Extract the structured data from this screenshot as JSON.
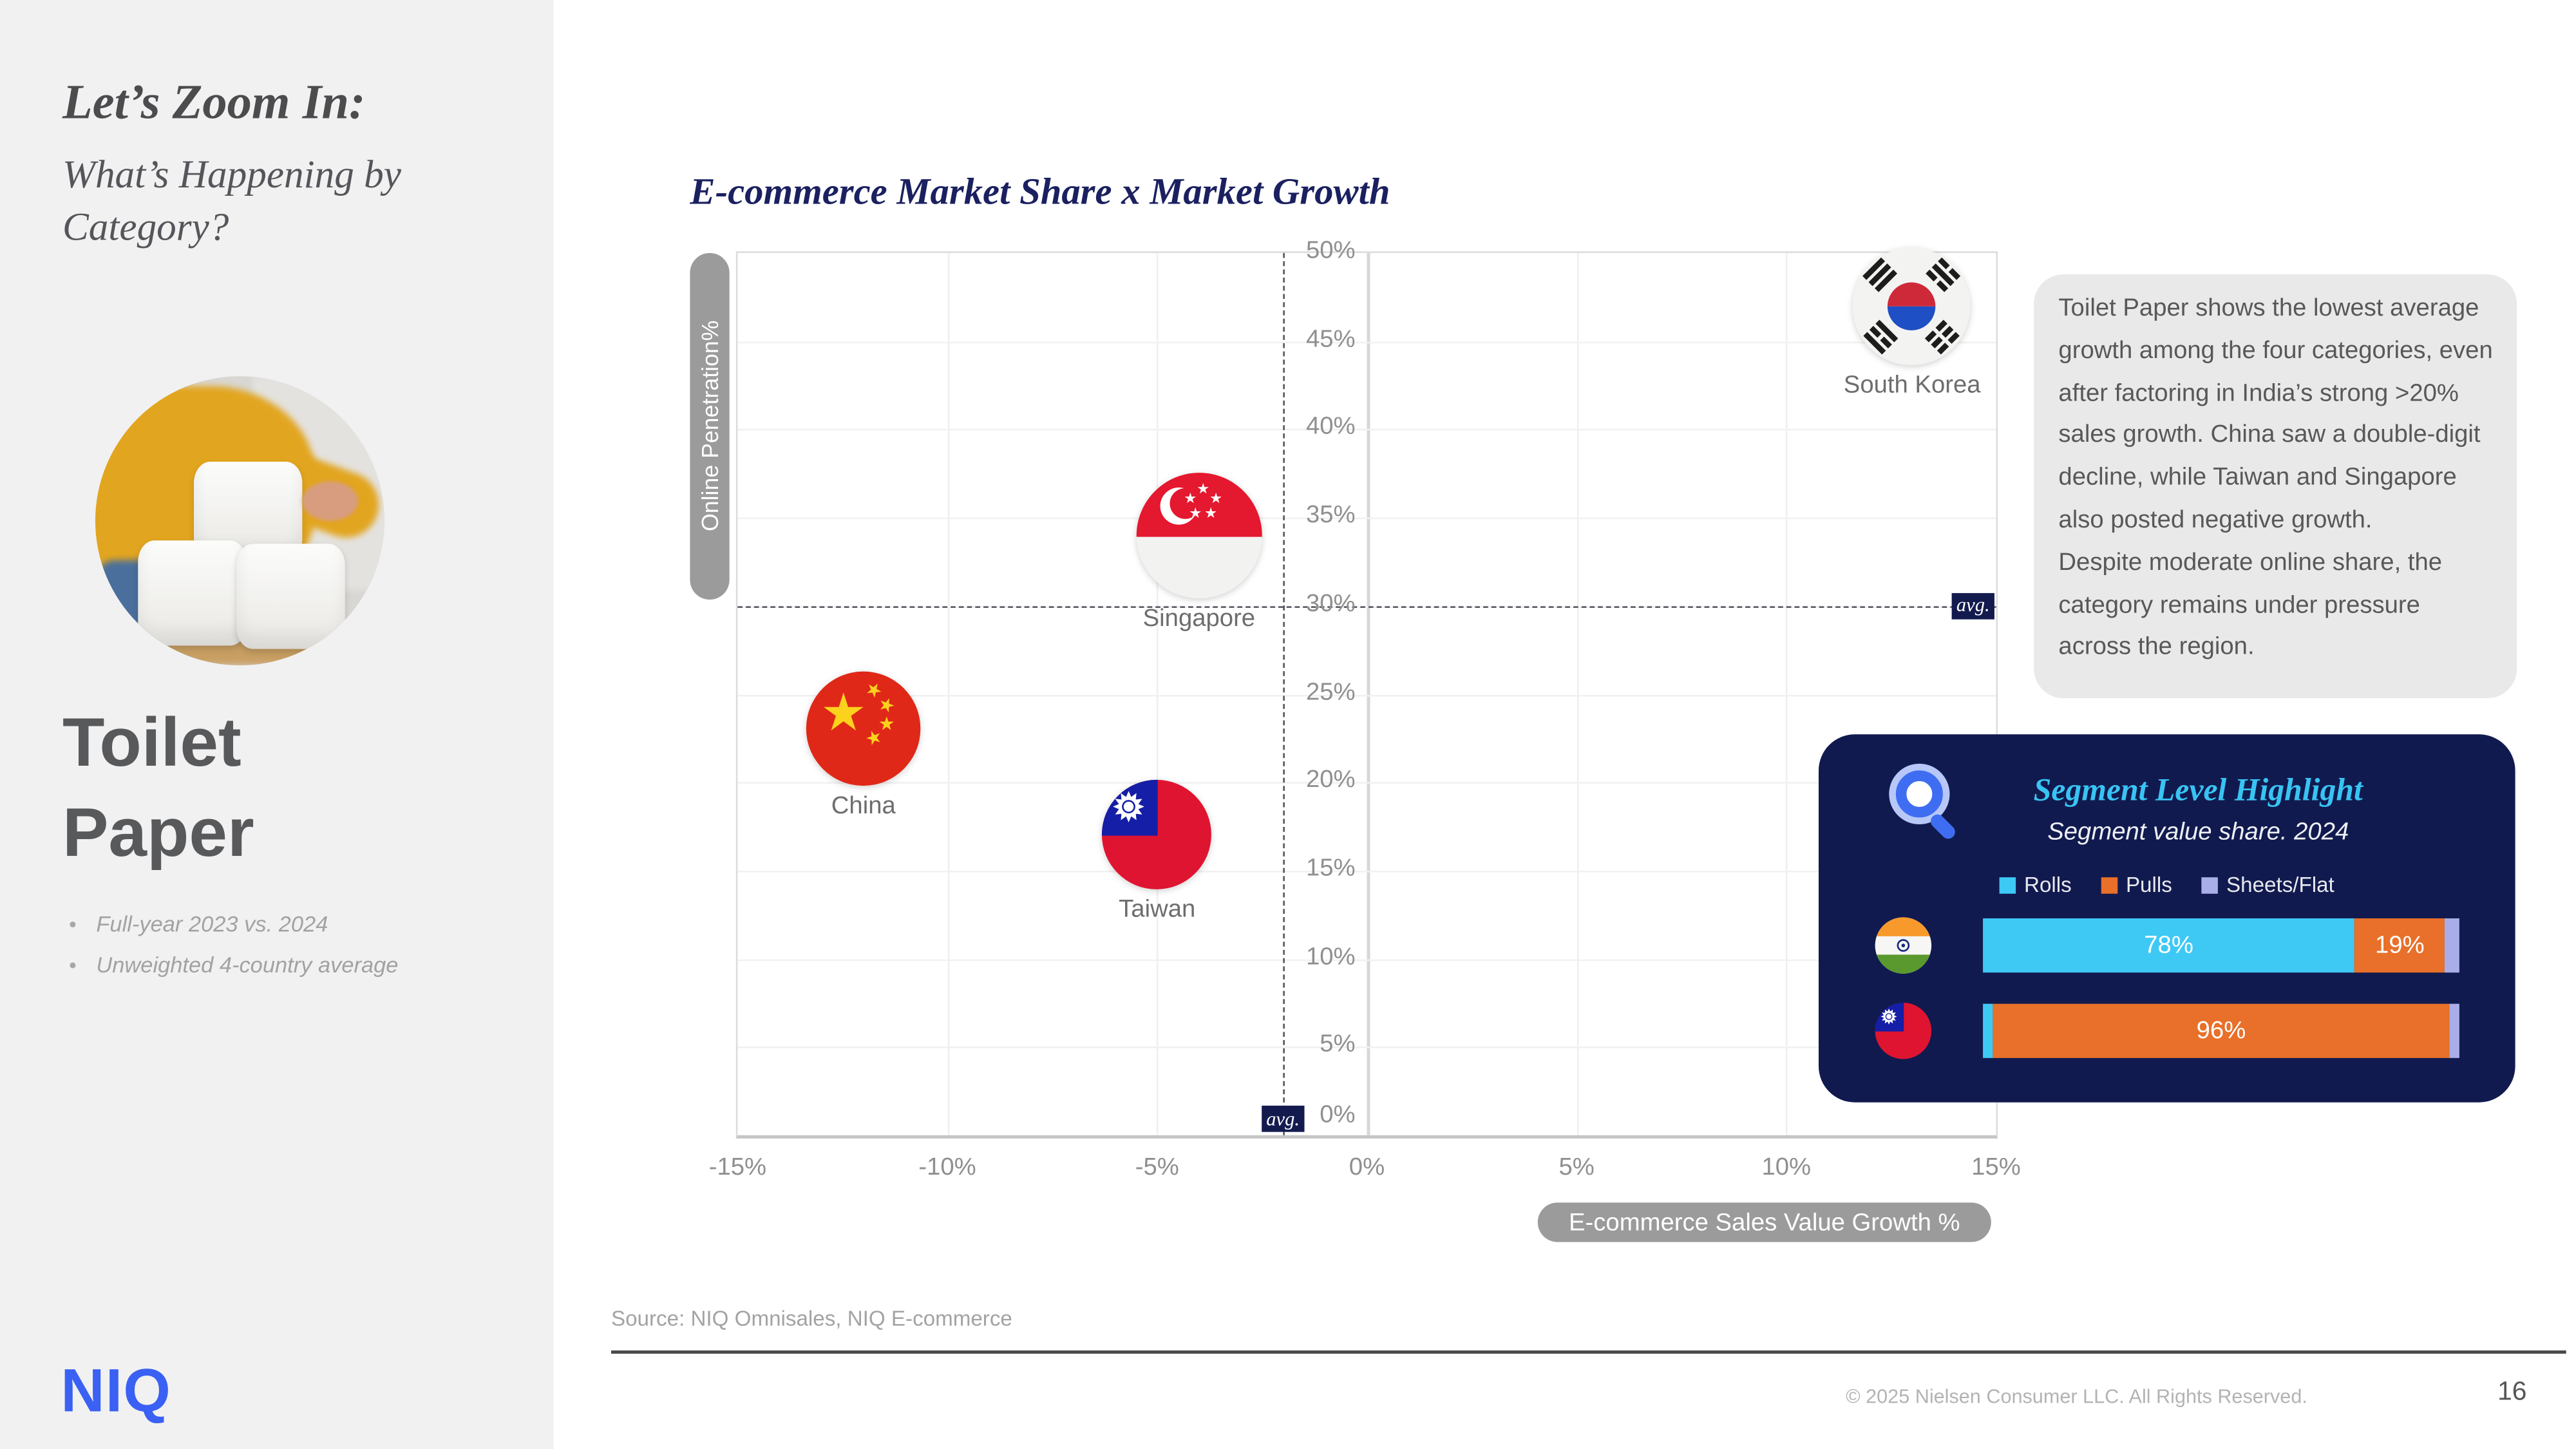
{
  "sidebar": {
    "title": "Let’s Zoom In:",
    "subtitle": "What’s Happening by Category?",
    "category_line1": "Toilet",
    "category_line2": "Paper",
    "bullets": [
      "Full-year 2023 vs. 2024",
      "Unweighted 4-country average"
    ],
    "logo": "NIQ"
  },
  "chart": {
    "title": "E-commerce Market Share x Market Growth",
    "y_axis_label": "Online Penetration%",
    "x_axis_label": "E-commerce Sales Value Growth %",
    "avg_label": "avg."
  },
  "chart_data": {
    "type": "scatter",
    "title": "E-commerce Market Share x Market Growth",
    "xlabel": "E-commerce Sales Value Growth %",
    "ylabel": "Online Penetration%",
    "xlim": [
      -15,
      15
    ],
    "ylim": [
      0,
      50
    ],
    "x_ticks": [
      "-15%",
      "-10%",
      "-5%",
      "0%",
      "5%",
      "10%",
      "15%"
    ],
    "x_tick_values": [
      -15,
      -10,
      -5,
      0,
      5,
      10,
      15
    ],
    "y_ticks": [
      "0%",
      "5%",
      "10%",
      "15%",
      "20%",
      "25%",
      "30%",
      "35%",
      "40%",
      "45%",
      "50%"
    ],
    "y_tick_values": [
      0,
      5,
      10,
      15,
      20,
      25,
      30,
      35,
      40,
      45,
      50
    ],
    "grid": true,
    "avg_x": -2,
    "avg_y": 30,
    "points": [
      {
        "label": "South Korea",
        "x": 13,
        "y": 47,
        "flag": "kr",
        "size": 73
      },
      {
        "label": "Singapore",
        "x": -4,
        "y": 34,
        "flag": "sg",
        "size": 78
      },
      {
        "label": "China",
        "x": -12,
        "y": 23,
        "flag": "cn",
        "size": 71
      },
      {
        "label": "Taiwan",
        "x": -5,
        "y": 17,
        "flag": "tw",
        "size": 76,
        "height": 68
      }
    ]
  },
  "insight": {
    "paragraphs": [
      "Toilet Paper shows the lowest average growth among the four categories, even after factoring in India’s strong >20% sales growth. China saw a double-digit decline, while Taiwan and Singapore also posted negative growth.",
      "Despite moderate online share, the category remains under pressure across the region."
    ]
  },
  "segment_card": {
    "title": "Segment Level Highlight",
    "subtitle": "Segment value share. 2024",
    "legend": [
      {
        "label": "Rolls",
        "color": "#3ec9f5"
      },
      {
        "label": "Pulls",
        "color": "#e8702a"
      },
      {
        "label": "Sheets/Flat",
        "color": "#a9aee8"
      }
    ],
    "rows": [
      {
        "country": "India",
        "flag": "in",
        "segments": [
          {
            "name": "Rolls",
            "value": 78,
            "label": "78%"
          },
          {
            "name": "Pulls",
            "value": 19,
            "label": "19%"
          },
          {
            "name": "Sheets/Flat",
            "value": 3,
            "label": ""
          }
        ]
      },
      {
        "country": "Taiwan",
        "flag": "tw",
        "segments": [
          {
            "name": "Rolls",
            "value": 2,
            "label": ""
          },
          {
            "name": "Pulls",
            "value": 96,
            "label": "96%"
          },
          {
            "name": "Sheets/Flat",
            "value": 2,
            "label": ""
          }
        ]
      }
    ]
  },
  "footer": {
    "source": "Source: NIQ Omnisales, NIQ E-commerce",
    "copyright": "© 2025 Nielsen Consumer LLC. All Rights Reserved.",
    "page": "16"
  },
  "colors": {
    "sidebar_bg": "#f1f1f2",
    "navy_title": "#1b2060",
    "card_bg": "#111a4f",
    "accent_cyan": "#38c4f3",
    "accent_orange": "#e8702a",
    "accent_lavender": "#a9aee8",
    "niq_blue": "#3a61f3",
    "axis_pill_gray": "#9b9b9b",
    "insight_bg": "#e9e9e9"
  }
}
